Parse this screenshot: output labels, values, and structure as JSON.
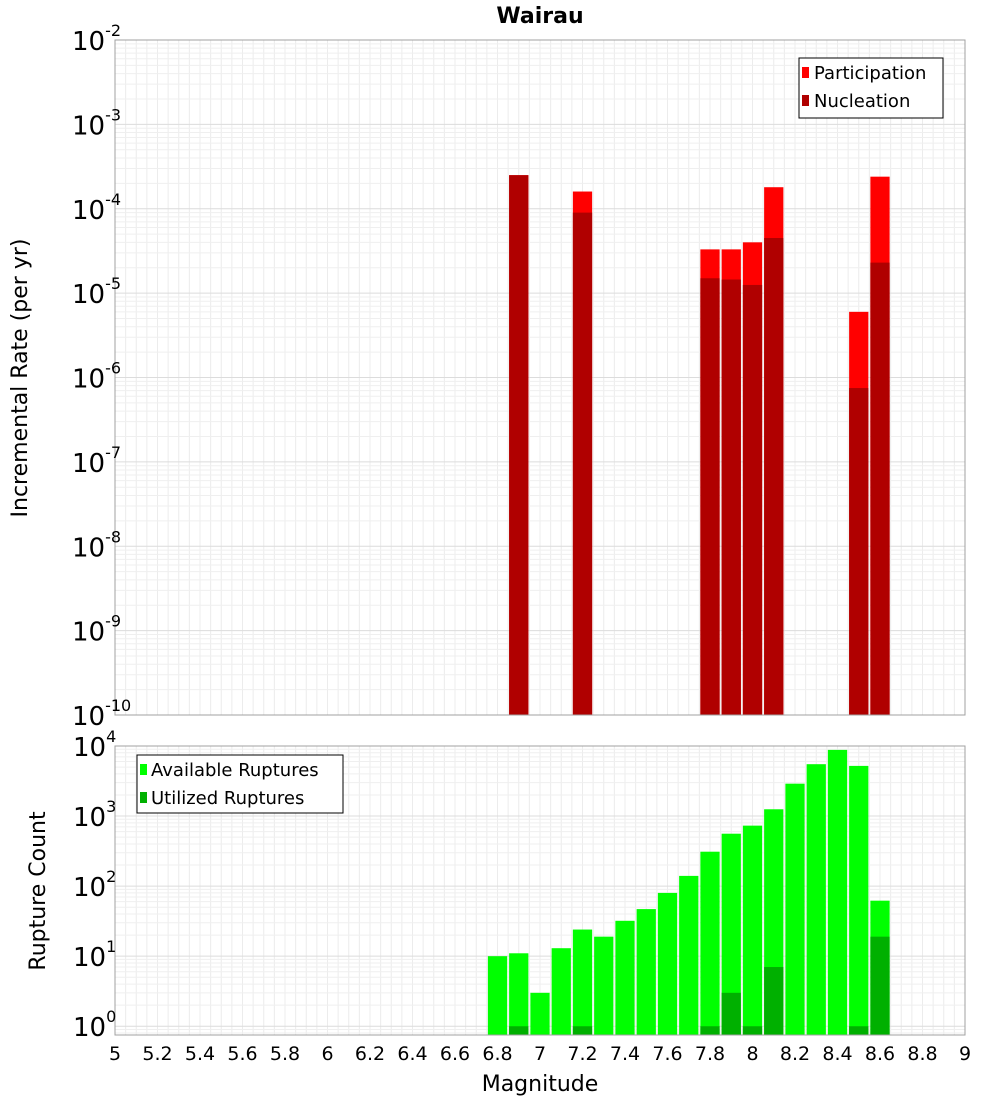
{
  "chart_data": [
    {
      "type": "bar",
      "title": "Wairau",
      "xlabel": "",
      "ylabel": "Incremental Rate (per yr)",
      "yscale": "log",
      "xlim": [
        5,
        9
      ],
      "ylim": [
        1e-10,
        0.01
      ],
      "grid": true,
      "legend_position": "top-right",
      "x": [
        6.9,
        7.2,
        7.8,
        7.9,
        8.0,
        8.1,
        8.5,
        8.6
      ],
      "series": [
        {
          "name": "Participation",
          "color": "#ff0000",
          "values": [
            0.00025,
            0.00016,
            3.3e-05,
            3.3e-05,
            4e-05,
            0.00018,
            6e-06,
            0.00024
          ]
        },
        {
          "name": "Nucleation",
          "color": "#b00000",
          "values": [
            0.00025,
            9e-05,
            1.5e-05,
            1.45e-05,
            1.25e-05,
            4.5e-05,
            7.5e-07,
            2.3e-05
          ]
        }
      ],
      "y_ticks": [
        {
          "base": "10",
          "exp": "-2"
        },
        {
          "base": "10",
          "exp": "-3"
        },
        {
          "base": "10",
          "exp": "-4"
        },
        {
          "base": "10",
          "exp": "-5"
        },
        {
          "base": "10",
          "exp": "-6"
        },
        {
          "base": "10",
          "exp": "-7"
        },
        {
          "base": "10",
          "exp": "-8"
        },
        {
          "base": "10",
          "exp": "-9"
        },
        {
          "base": "10",
          "exp": "-10"
        }
      ]
    },
    {
      "type": "bar",
      "title": "",
      "xlabel": "Magnitude",
      "ylabel": "Rupture Count",
      "yscale": "log",
      "xlim": [
        5,
        9
      ],
      "ylim": [
        0.75,
        10000
      ],
      "grid": true,
      "legend_position": "top-left",
      "x": [
        6.8,
        6.9,
        7.0,
        7.1,
        7.2,
        7.3,
        7.4,
        7.5,
        7.6,
        7.7,
        7.8,
        7.9,
        8.0,
        8.1,
        8.2,
        8.3,
        8.4,
        8.5,
        8.6
      ],
      "series": [
        {
          "name": "Available Ruptures",
          "color": "#00ff00",
          "values": [
            10,
            11,
            3,
            13,
            24,
            19,
            32,
            47,
            80,
            140,
            310,
            560,
            730,
            1250,
            2900,
            5500,
            8800,
            5200,
            62
          ]
        },
        {
          "name": "Utilized Ruptures",
          "color": "#00b000",
          "values": [
            0,
            1,
            0,
            0,
            1,
            0,
            0,
            0,
            0,
            0,
            1,
            3,
            1,
            7,
            0,
            0,
            0,
            1,
            19
          ]
        }
      ],
      "x_ticks": [
        "5",
        "5.2",
        "5.4",
        "5.6",
        "5.8",
        "6",
        "6.2",
        "6.4",
        "6.6",
        "6.8",
        "7",
        "7.2",
        "7.4",
        "7.6",
        "7.8",
        "8",
        "8.2",
        "8.4",
        "8.6",
        "8.8",
        "9"
      ],
      "y_ticks": [
        {
          "base": "10",
          "exp": "4"
        },
        {
          "base": "10",
          "exp": "3"
        },
        {
          "base": "10",
          "exp": "2"
        },
        {
          "base": "10",
          "exp": "1"
        },
        {
          "base": "10",
          "exp": "0"
        }
      ]
    }
  ]
}
